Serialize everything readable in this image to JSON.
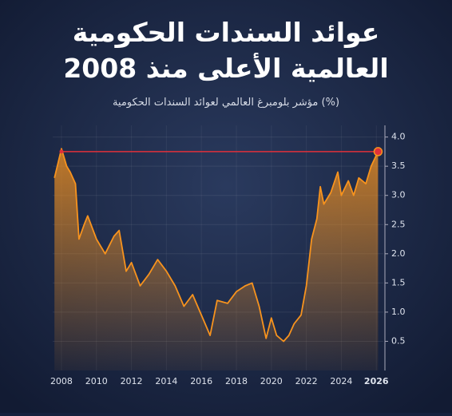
{
  "chart_data": {
    "type": "area",
    "title": [
      "عوائد السندات الحكومية",
      "العالمية الأعلى منذ 2008"
    ],
    "subtitle": "مؤشر بلومبرغ العالمي لعوائد السندات الحكومية (%)",
    "series": [
      {
        "color": "#f7931e",
        "x": [
          2007.6,
          2008.0,
          2008.3,
          2008.5,
          2008.8,
          2009.0,
          2009.3,
          2009.5,
          2010.0,
          2010.5,
          2011.0,
          2011.3,
          2011.7,
          2012.0,
          2012.5,
          2013.0,
          2013.5,
          2014.0,
          2014.5,
          2015.0,
          2015.5,
          2016.0,
          2016.5,
          2016.9,
          2017.5,
          2018.0,
          2018.5,
          2018.9,
          2019.3,
          2019.7,
          2020.0,
          2020.3,
          2020.7,
          2021.0,
          2021.3,
          2021.7,
          2022.0,
          2022.3,
          2022.6,
          2022.8,
          2023.0,
          2023.4,
          2023.8,
          2024.0,
          2024.4,
          2024.7,
          2025.0,
          2025.4,
          2025.7,
          2026.1
        ],
        "values": [
          3.3,
          3.8,
          3.5,
          3.4,
          3.2,
          2.25,
          2.5,
          2.65,
          2.25,
          2.0,
          2.3,
          2.4,
          1.7,
          1.85,
          1.45,
          1.65,
          1.9,
          1.7,
          1.45,
          1.1,
          1.3,
          0.95,
          0.6,
          1.2,
          1.15,
          1.35,
          1.45,
          1.5,
          1.1,
          0.55,
          0.9,
          0.6,
          0.5,
          0.6,
          0.8,
          0.95,
          1.45,
          2.25,
          2.6,
          3.15,
          2.85,
          3.05,
          3.4,
          3.0,
          3.25,
          3.0,
          3.3,
          3.2,
          3.5,
          3.75
        ]
      }
    ],
    "reference_line": {
      "value": 3.75,
      "color": "#e0303a"
    },
    "xlim": [
      2007.5,
      2026.4
    ],
    "xticks": [
      2008,
      2010,
      2012,
      2014,
      2016,
      2018,
      2020,
      2022,
      2024,
      2026
    ],
    "ylim": [
      0,
      4.2
    ],
    "yticks": [
      0.5,
      {
        "value": 1,
        "label": "1.0"
      },
      1.5,
      {
        "value": 2,
        "label": "2.0"
      },
      2.5,
      {
        "value": 3,
        "label": "3.0"
      },
      3.5,
      {
        "value": 4,
        "label": "4.0"
      }
    ],
    "grid": true
  }
}
